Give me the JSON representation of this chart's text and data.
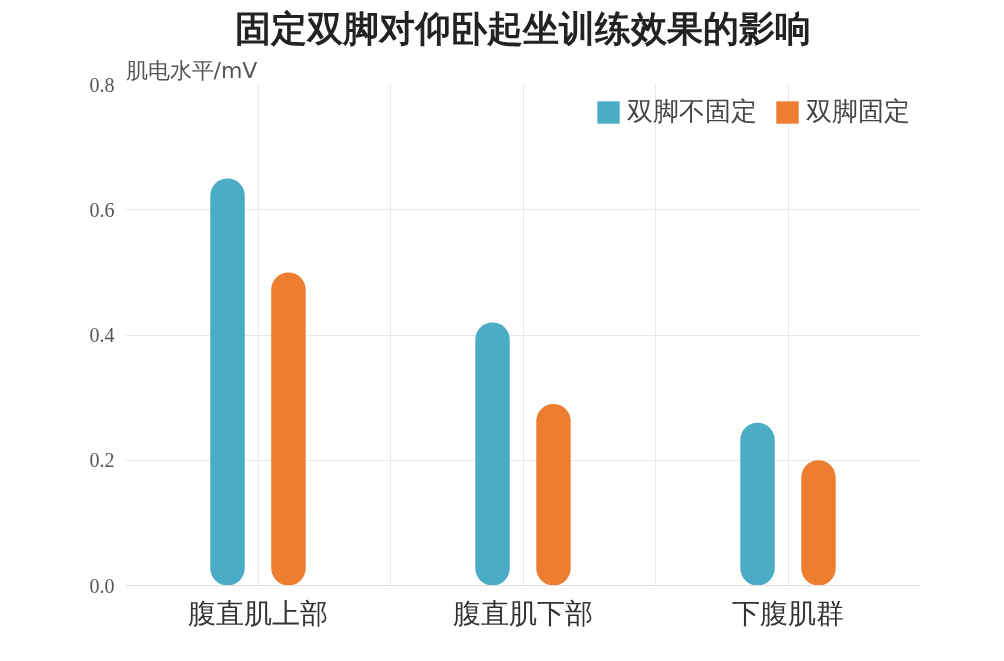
{
  "chart_data": {
    "type": "bar",
    "title": "固定双脚对仰卧起坐训练效果的影响",
    "ylabel": "肌电水平/mV",
    "categories": [
      "腹直肌上部",
      "腹直肌下部",
      "下腹肌群"
    ],
    "series": [
      {
        "name": "双脚不固定",
        "color": "#4bacc6",
        "values": [
          0.65,
          0.42,
          0.26
        ]
      },
      {
        "name": "双脚固定",
        "color": "#ed7d31",
        "values": [
          0.5,
          0.29,
          0.2
        ]
      }
    ],
    "ylim": [
      0,
      0.8
    ],
    "yticks": [
      {
        "value": 0,
        "label": "0.0"
      },
      {
        "value": 0.2,
        "label": "0.2"
      },
      {
        "value": 0.4,
        "label": "0.4"
      },
      {
        "value": 0.6,
        "label": "0.6"
      },
      {
        "value": 0.8,
        "label": "0.8"
      }
    ],
    "grid": true,
    "legend": "top right"
  }
}
